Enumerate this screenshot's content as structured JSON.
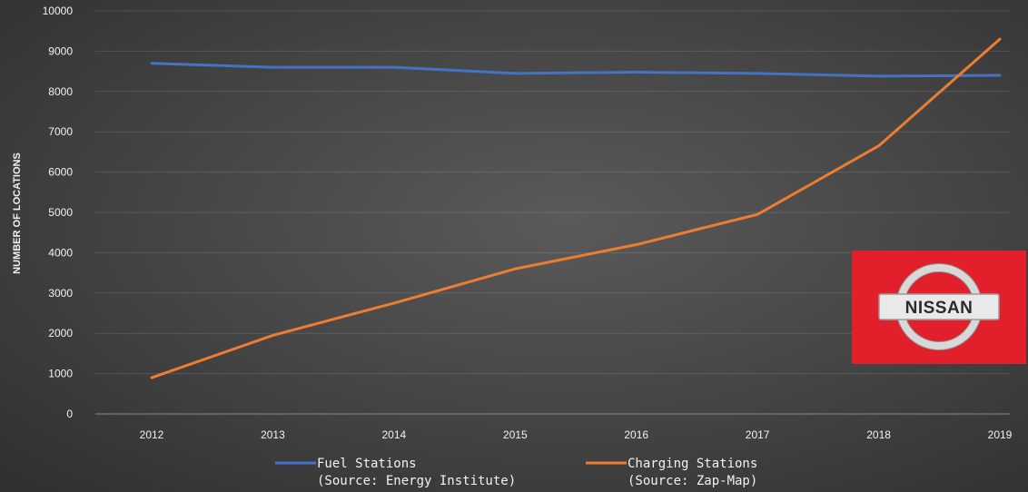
{
  "chart_data": {
    "type": "line",
    "title": "",
    "xlabel": "",
    "ylabel": "NUMBER OF LOCATIONS",
    "ylim": [
      0,
      10000
    ],
    "yticks": [
      0,
      1000,
      2000,
      3000,
      4000,
      5000,
      6000,
      7000,
      8000,
      9000,
      10000
    ],
    "categories": [
      "2012",
      "2013",
      "2014",
      "2015",
      "2016",
      "2017",
      "2018",
      "2019"
    ],
    "series": [
      {
        "name": "Fuel Stations",
        "source": "(Source: Energy Institute)",
        "color": "#4472c4",
        "values": [
          8700,
          8600,
          8600,
          8450,
          8480,
          8450,
          8380,
          8400
        ]
      },
      {
        "name": "Charging Stations",
        "source": "(Source: Zap-Map)",
        "color": "#ed7d31",
        "values": [
          900,
          1950,
          2750,
          3600,
          4200,
          4950,
          6650,
          9300
        ]
      }
    ],
    "grid": true,
    "legend": "bottom-center"
  },
  "logo": {
    "brand_text": "NISSAN",
    "background_color": "#e2202c"
  }
}
